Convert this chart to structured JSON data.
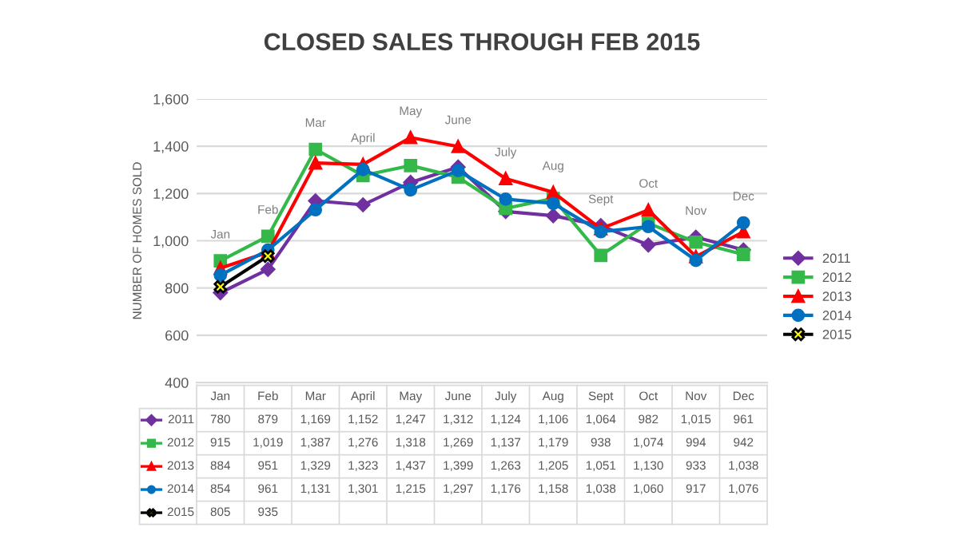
{
  "chart_data": {
    "type": "line",
    "title": "CLOSED SALES THROUGH FEB 2015",
    "ylabel": "NUMBER OF HOMES SOLD",
    "categories": [
      "Jan",
      "Feb",
      "Mar",
      "April",
      "May",
      "June",
      "July",
      "Aug",
      "Sept",
      "Oct",
      "Nov",
      "Dec"
    ],
    "series": [
      {
        "name": "2011",
        "color": "#7030a0",
        "marker": "diamond",
        "values": [
          780,
          879,
          1169,
          1152,
          1247,
          1312,
          1124,
          1106,
          1064,
          982,
          1015,
          961
        ],
        "value_labels": [
          "780",
          "879",
          "1,169",
          "1,152",
          "1,247",
          "1,312",
          "1,124",
          "1,106",
          "1,064",
          "982",
          "1,015",
          "961"
        ]
      },
      {
        "name": "2012",
        "color": "#33b849",
        "marker": "square",
        "values": [
          915,
          1019,
          1387,
          1276,
          1318,
          1269,
          1137,
          1179,
          938,
          1074,
          994,
          942
        ],
        "value_labels": [
          "915",
          "1,019",
          "1,387",
          "1,276",
          "1,318",
          "1,269",
          "1,137",
          "1,179",
          "938",
          "1,074",
          "994",
          "942"
        ]
      },
      {
        "name": "2013",
        "color": "#ff0000",
        "marker": "triangle",
        "values": [
          884,
          951,
          1329,
          1323,
          1437,
          1399,
          1263,
          1205,
          1051,
          1130,
          933,
          1038
        ],
        "value_labels": [
          "884",
          "951",
          "1,329",
          "1,323",
          "1,437",
          "1,399",
          "1,263",
          "1,205",
          "1,051",
          "1,130",
          "933",
          "1,038"
        ]
      },
      {
        "name": "2014",
        "color": "#0070c0",
        "marker": "circle",
        "values": [
          854,
          961,
          1131,
          1301,
          1215,
          1297,
          1176,
          1158,
          1038,
          1060,
          917,
          1076
        ],
        "value_labels": [
          "854",
          "961",
          "1,131",
          "1,301",
          "1,215",
          "1,297",
          "1,176",
          "1,158",
          "1,038",
          "1,060",
          "917",
          "1,076"
        ]
      },
      {
        "name": "2015",
        "color": "#000000",
        "marker": "cross",
        "values": [
          805,
          935,
          null,
          null,
          null,
          null,
          null,
          null,
          null,
          null,
          null,
          null
        ],
        "value_labels": [
          "805",
          "935",
          null,
          null,
          null,
          null,
          null,
          null,
          null,
          null,
          null,
          null
        ]
      }
    ],
    "ylim": [
      400,
      1600
    ],
    "yticks": [
      {
        "value": 400,
        "label": "400"
      },
      {
        "value": 600,
        "label": "600"
      },
      {
        "value": 800,
        "label": "800"
      },
      {
        "value": 1000,
        "label": "1,000"
      },
      {
        "value": 1200,
        "label": "1,200"
      },
      {
        "value": 1400,
        "label": "1,400"
      },
      {
        "value": 1600,
        "label": "1,600"
      }
    ],
    "grid": "y",
    "legend": "right",
    "tick_labels": "y",
    "annotations": [
      "Jan",
      "Feb",
      "Mar",
      "April",
      "May",
      "June",
      "July",
      "Aug",
      "Sept",
      "Oct",
      "Nov",
      "Dec"
    ]
  }
}
